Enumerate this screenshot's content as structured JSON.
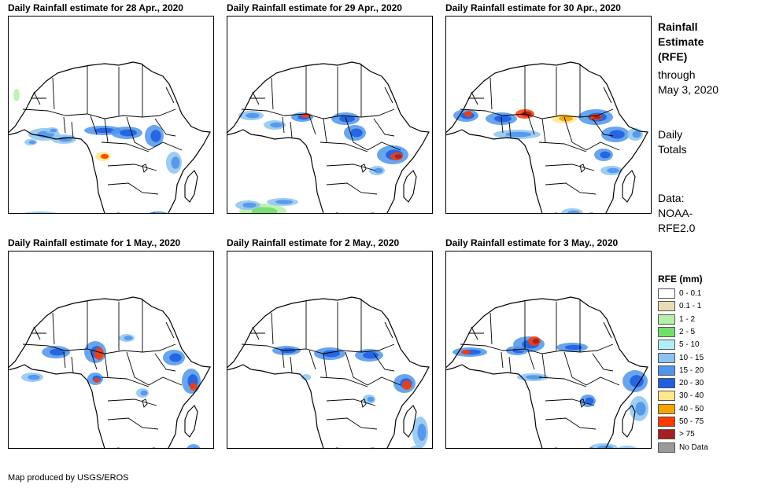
{
  "panels": [
    {
      "title": "Daily Rainfall estimate for 28 Apr., 2020"
    },
    {
      "title": "Daily Rainfall estimate for 29 Apr., 2020"
    },
    {
      "title": "Daily Rainfall estimate for 30 Apr., 2020"
    },
    {
      "title": "Daily Rainfall estimate for 1 May., 2020"
    },
    {
      "title": "Daily Rainfall estimate for 2 May., 2020"
    },
    {
      "title": "Daily Rainfall estimate for 3 May., 2020"
    }
  ],
  "side": {
    "title_lines": [
      "Rainfall",
      "Estimate",
      "(RFE)"
    ],
    "through_lines": [
      "through",
      "May 3, 2020"
    ],
    "totals_lines": [
      "Daily",
      "Totals"
    ],
    "data_lines": [
      "Data:",
      "NOAA-",
      "RFE2.0"
    ]
  },
  "legend": {
    "title": "RFE (mm)",
    "items": [
      {
        "label": "0 - 0.1",
        "color": "#ffffff"
      },
      {
        "label": "0.1 - 1",
        "color": "#e8dcb5"
      },
      {
        "label": "1 - 2",
        "color": "#b5f0a8"
      },
      {
        "label": "2 - 5",
        "color": "#6fe06a"
      },
      {
        "label": "5 - 10",
        "color": "#b0eff5"
      },
      {
        "label": "10 - 15",
        "color": "#8dc3f0"
      },
      {
        "label": "15 - 20",
        "color": "#4f95ea"
      },
      {
        "label": "20 - 30",
        "color": "#1f5fe0"
      },
      {
        "label": "30 - 40",
        "color": "#ffe88a"
      },
      {
        "label": "40 - 50",
        "color": "#f5a400"
      },
      {
        "label": "50 - 75",
        "color": "#ff3b00"
      },
      {
        "label": "> 75",
        "color": "#a52020"
      },
      {
        "label": "No Data",
        "color": "#9a9a9a"
      }
    ]
  },
  "footer": "Map produced by USGS/EROS"
}
